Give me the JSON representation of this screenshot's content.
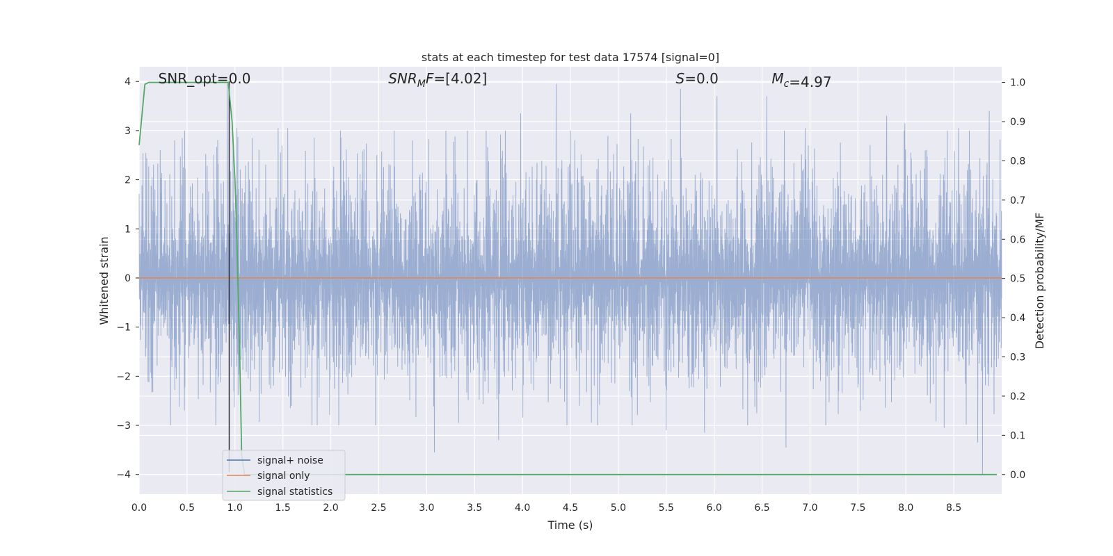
{
  "chart_data": {
    "type": "line",
    "title": "stats at each timestep for test data 17574 [signal=0]",
    "xlabel": "Time (s)",
    "ylabel": "Whitened strain",
    "ylabel_right": "Detection probability/MF",
    "xlim": [
      0.0,
      9.0
    ],
    "ylim": [
      -4.4,
      4.3
    ],
    "ylim_right": [
      -0.05,
      1.04
    ],
    "x_ticks": [
      0.0,
      0.5,
      1.0,
      1.5,
      2.0,
      2.5,
      3.0,
      3.5,
      4.0,
      4.5,
      5.0,
      5.5,
      6.0,
      6.5,
      7.0,
      7.5,
      8.0,
      8.5
    ],
    "x_tick_labels": [
      "0.0",
      "0.5",
      "1.0",
      "1.5",
      "2.0",
      "2.5",
      "3.0",
      "3.5",
      "4.0",
      "4.5",
      "5.0",
      "5.5",
      "6.0",
      "6.5",
      "7.0",
      "7.5",
      "8.0",
      "8.5"
    ],
    "y_ticks": [
      -4,
      -3,
      -2,
      -1,
      0,
      1,
      2,
      3,
      4
    ],
    "y_tick_labels": [
      "−4",
      "−3",
      "−2",
      "−1",
      "0",
      "1",
      "2",
      "3",
      "4"
    ],
    "y_right_ticks": [
      0.0,
      0.1,
      0.2,
      0.3,
      0.4,
      0.5,
      0.6,
      0.7,
      0.8,
      0.9,
      1.0
    ],
    "y_right_tick_labels": [
      "0.0",
      "0.1",
      "0.2",
      "0.3",
      "0.4",
      "0.5",
      "0.6",
      "0.7",
      "0.8",
      "0.9",
      "1.0"
    ],
    "grid": true,
    "legend_placement": "lower-left",
    "annotations": [
      {
        "text": "SNR_opt=0.0",
        "x": 0.2,
        "y": 4.0
      },
      {
        "text": "SNR_MF=[4.02]",
        "x": 2.6,
        "y": 4.0
      },
      {
        "text": "S=0.0",
        "x": 5.6,
        "y": 4.0
      },
      {
        "text": "M_c=4.97",
        "x": 6.6,
        "y": 4.0
      }
    ],
    "series": [
      {
        "name": "signal+ noise",
        "color": "#4c72b0",
        "axis": "left",
        "kind": "noise",
        "typical_amplitude": 1.55,
        "peaks": [
          [
            0.37,
            2.8
          ],
          [
            0.45,
            2.85
          ],
          [
            0.8,
            -3.0
          ],
          [
            0.92,
            3.95
          ],
          [
            1.02,
            3.05
          ],
          [
            1.45,
            3.05
          ],
          [
            1.55,
            3.05
          ],
          [
            2.85,
            2.8
          ],
          [
            3.08,
            -3.55
          ],
          [
            3.75,
            -3.3
          ],
          [
            3.98,
            3.35
          ],
          [
            4.35,
            3.95
          ],
          [
            5.13,
            3.35
          ],
          [
            5.5,
            -3.1
          ],
          [
            5.65,
            3.85
          ],
          [
            5.9,
            -3.15
          ],
          [
            6.03,
            3.7
          ],
          [
            6.55,
            3.7
          ],
          [
            6.75,
            -3.45
          ],
          [
            6.95,
            3.05
          ],
          [
            7.8,
            3.3
          ],
          [
            7.99,
            3.15
          ],
          [
            8.4,
            -3.05
          ],
          [
            8.55,
            3.05
          ],
          [
            8.75,
            -3.35
          ],
          [
            8.8,
            -4.0
          ],
          [
            8.87,
            3.4
          ]
        ]
      },
      {
        "name": "signal only",
        "color": "#dd8452",
        "axis": "left",
        "x": [
          0.0,
          9.0
        ],
        "values": [
          0.0,
          0.0
        ]
      },
      {
        "name": "signal statistics",
        "color": "#55a868",
        "axis": "right",
        "x": [
          0.0,
          0.06,
          0.1,
          0.2,
          0.4,
          0.6,
          0.8,
          0.93,
          0.97,
          1.0,
          1.02,
          1.05,
          1.07,
          1.1,
          1.3,
          2.0,
          4.0,
          6.0,
          8.0,
          8.95
        ],
        "values": [
          0.84,
          0.995,
          1.0,
          1.0,
          1.0,
          1.0,
          1.0,
          1.0,
          0.9,
          0.75,
          0.6,
          0.3,
          0.05,
          0.0,
          0.0,
          0.0,
          0.0,
          0.0,
          0.0,
          0.0
        ]
      }
    ],
    "vertical_markers": [
      {
        "x": 0.94,
        "y_from": -3.95,
        "y_to": 4.0,
        "color": "#2c2c3c"
      }
    ]
  }
}
